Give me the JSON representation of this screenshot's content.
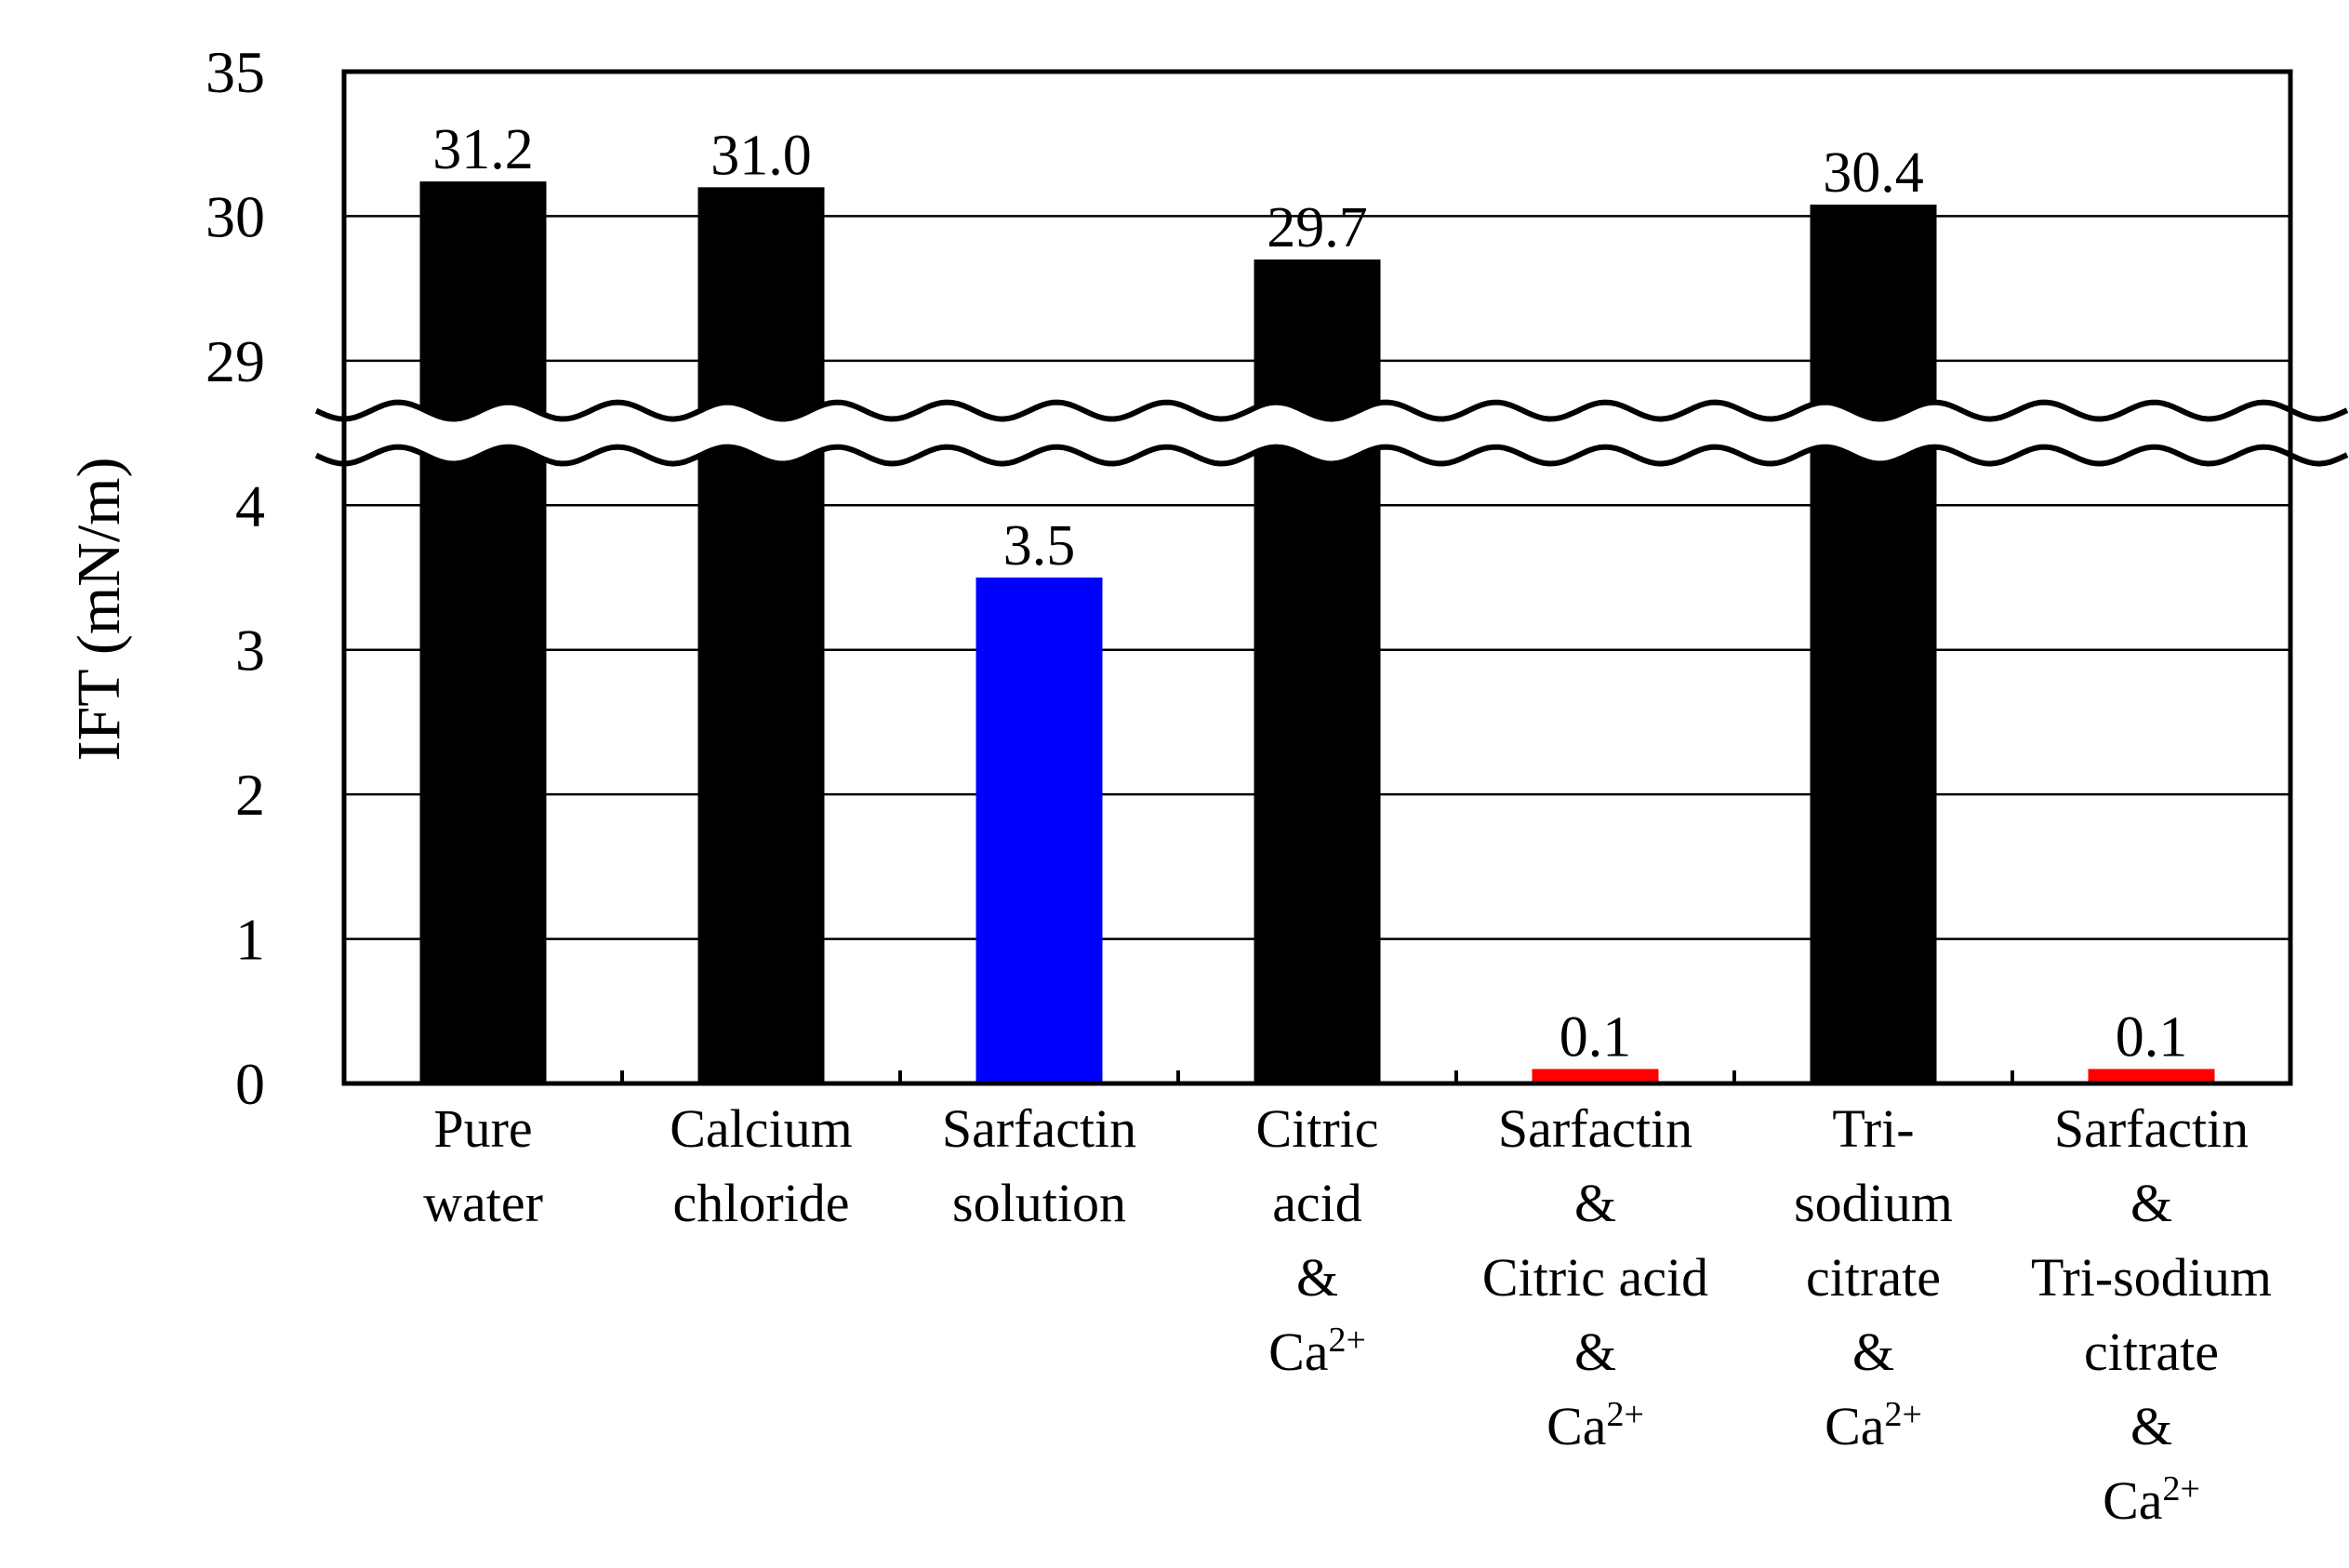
{
  "chart_data": {
    "type": "bar",
    "title": "",
    "xlabel": "",
    "ylabel": "IFT (mN/m)",
    "axis_break": {
      "lower_range": [
        0,
        4
      ],
      "upper_range": [
        29,
        35
      ]
    },
    "y_ticks": [
      "0",
      "1",
      "2",
      "3",
      "4",
      "29",
      "30",
      "35"
    ],
    "grid": "horizontal",
    "bars": [
      {
        "category_lines": [
          "Pure",
          "water"
        ],
        "value": 31.2,
        "label": "31.2",
        "color": "#000000"
      },
      {
        "category_lines": [
          "Calcium",
          "chloride"
        ],
        "value": 31.0,
        "label": "31.0",
        "color": "#000000"
      },
      {
        "category_lines": [
          "Sarfactin",
          "solution"
        ],
        "value": 3.5,
        "label": "3.5",
        "color": "#0000ff"
      },
      {
        "category_lines": [
          "Citric",
          "acid",
          "&",
          "Ca2+"
        ],
        "value": 29.7,
        "label": "29.7",
        "color": "#000000"
      },
      {
        "category_lines": [
          "Sarfactin",
          "&",
          "Citric acid",
          "&",
          "Ca2+"
        ],
        "value": 0.1,
        "label": "0.1",
        "color": "#ff0000"
      },
      {
        "category_lines": [
          "Tri-",
          "sodium",
          "citrate",
          "&",
          "Ca2+"
        ],
        "value": 30.4,
        "label": "30.4",
        "color": "#000000"
      },
      {
        "category_lines": [
          "Sarfactin",
          "&",
          "Tri-sodium",
          "citrate",
          "&",
          "Ca2+"
        ],
        "value": 0.1,
        "label": "0.1",
        "color": "#ff0000"
      }
    ]
  }
}
